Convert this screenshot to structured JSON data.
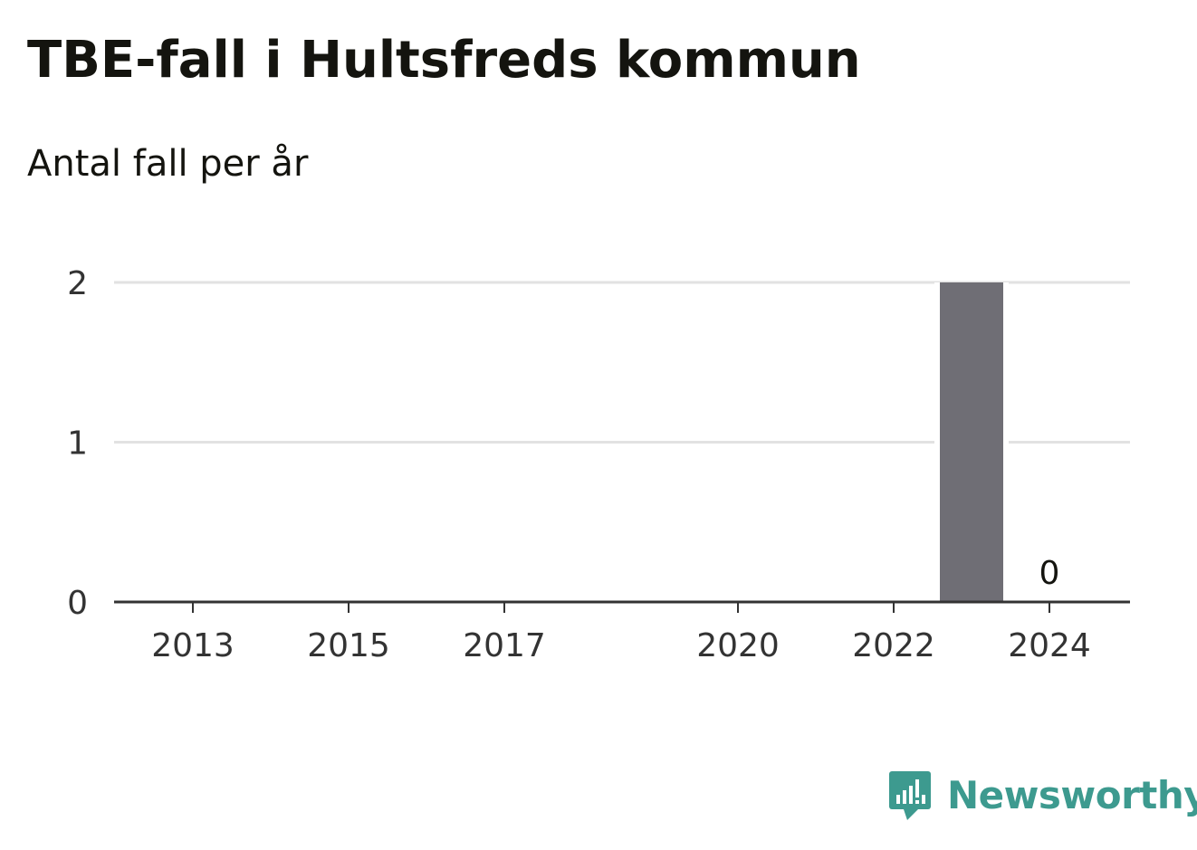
{
  "header": {
    "title": "TBE-fall i Hultsfreds kommun",
    "subtitle": "Antal fall per år"
  },
  "chart_data": {
    "type": "bar",
    "title": "TBE-fall i Hultsfreds kommun",
    "subtitle": "Antal fall per år",
    "xlabel": "",
    "ylabel": "",
    "categories": [
      "2013",
      "2014",
      "2015",
      "2016",
      "2017",
      "2018",
      "2019",
      "2020",
      "2021",
      "2022",
      "2023",
      "2024"
    ],
    "values": [
      0,
      0,
      0,
      0,
      0,
      0,
      0,
      0,
      0,
      0,
      2,
      0
    ],
    "x_tick_labels": [
      "2013",
      "2015",
      "2017",
      "2020",
      "2022",
      "2024"
    ],
    "y_ticks": [
      0,
      1,
      2
    ],
    "ylim": [
      0,
      2
    ],
    "grid": true,
    "legend": "none",
    "bar_color": "#6f6e75",
    "data_labels": [
      {
        "category": "2024",
        "text": "0"
      }
    ]
  },
  "branding": {
    "logo_text": "Newsworthy",
    "logo_icon": "newsworthy-chart-bubble-icon",
    "logo_color": "#3d9a8f"
  }
}
